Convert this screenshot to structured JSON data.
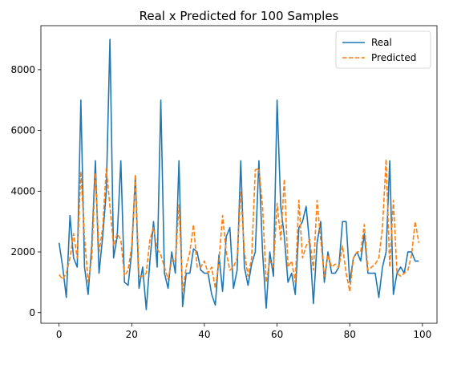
{
  "chart_data": {
    "type": "line",
    "title": "Real x Predicted for 100 Samples",
    "xlabel": "",
    "ylabel": "",
    "xlim": [
      -5,
      104
    ],
    "ylim": [
      -350,
      9450
    ],
    "xticks": [
      0,
      20,
      40,
      60,
      80,
      100
    ],
    "yticks": [
      0,
      2000,
      4000,
      6000,
      8000
    ],
    "grid": false,
    "legend_position": "top-right",
    "x": [
      0,
      1,
      2,
      3,
      4,
      5,
      6,
      7,
      8,
      9,
      10,
      11,
      12,
      13,
      14,
      15,
      16,
      17,
      18,
      19,
      20,
      21,
      22,
      23,
      24,
      25,
      26,
      27,
      28,
      29,
      30,
      31,
      32,
      33,
      34,
      35,
      36,
      37,
      38,
      39,
      40,
      41,
      42,
      43,
      44,
      45,
      46,
      47,
      48,
      49,
      50,
      51,
      52,
      53,
      54,
      55,
      56,
      57,
      58,
      59,
      60,
      61,
      62,
      63,
      64,
      65,
      66,
      67,
      68,
      69,
      70,
      71,
      72,
      73,
      74,
      75,
      76,
      77,
      78,
      79,
      80,
      81,
      82,
      83,
      84,
      85,
      86,
      87,
      88,
      89,
      90,
      91,
      92,
      93,
      94,
      95,
      96,
      97,
      98,
      99
    ],
    "series": [
      {
        "name": "Real",
        "color": "#1f77b4",
        "dash": "solid",
        "values": [
          2300,
          1500,
          500,
          3200,
          1800,
          1500,
          7000,
          1500,
          600,
          2200,
          5000,
          1300,
          2500,
          4000,
          9000,
          1800,
          2500,
          5000,
          1000,
          900,
          2000,
          4500,
          800,
          1500,
          100,
          1700,
          3000,
          1500,
          7000,
          1300,
          800,
          2000,
          1300,
          5000,
          200,
          1300,
          1300,
          2100,
          2000,
          1400,
          1300,
          1300,
          600,
          250,
          1900,
          700,
          2500,
          2800,
          800,
          1400,
          5000,
          1500,
          900,
          1600,
          2000,
          5000,
          2000,
          150,
          2000,
          1200,
          7000,
          3500,
          2500,
          1000,
          1300,
          600,
          2800,
          3000,
          3500,
          2200,
          300,
          2300,
          3000,
          1000,
          2000,
          1300,
          1300,
          1500,
          3000,
          3000,
          1000,
          1800,
          2000,
          1700,
          2600,
          1300,
          1300,
          1300,
          500,
          1500,
          2000,
          5000,
          600,
          1300,
          1500,
          1300,
          2000,
          2000,
          1700,
          1700
        ]
      },
      {
        "name": "Predicted",
        "color": "#ff7f0e",
        "dash": "dashed",
        "values": [
          1250,
          1100,
          1300,
          1800,
          2600,
          1800,
          4650,
          2500,
          1000,
          1800,
          4600,
          2000,
          2800,
          4750,
          3500,
          2200,
          2600,
          2400,
          1200,
          1400,
          2200,
          4550,
          1200,
          1200,
          1300,
          2400,
          2800,
          2100,
          1900,
          1500,
          1100,
          1700,
          1700,
          3550,
          700,
          1500,
          2000,
          2900,
          1500,
          1500,
          1700,
          1300,
          1500,
          800,
          1700,
          3200,
          2000,
          1400,
          1500,
          1800,
          4000,
          2000,
          1200,
          1800,
          4700,
          4750,
          3500,
          1000,
          1700,
          1500,
          3600,
          2400,
          4400,
          1500,
          1700,
          1000,
          3700,
          1800,
          2200,
          2400,
          1400,
          3700,
          2400,
          1200,
          1900,
          1500,
          1600,
          1500,
          2200,
          1300,
          700,
          1800,
          2000,
          2000,
          2900,
          1400,
          1500,
          1600,
          1800,
          2800,
          5050,
          1500,
          3700,
          1300,
          1200,
          1300,
          1400,
          1900,
          3000,
          2300
        ]
      }
    ]
  }
}
